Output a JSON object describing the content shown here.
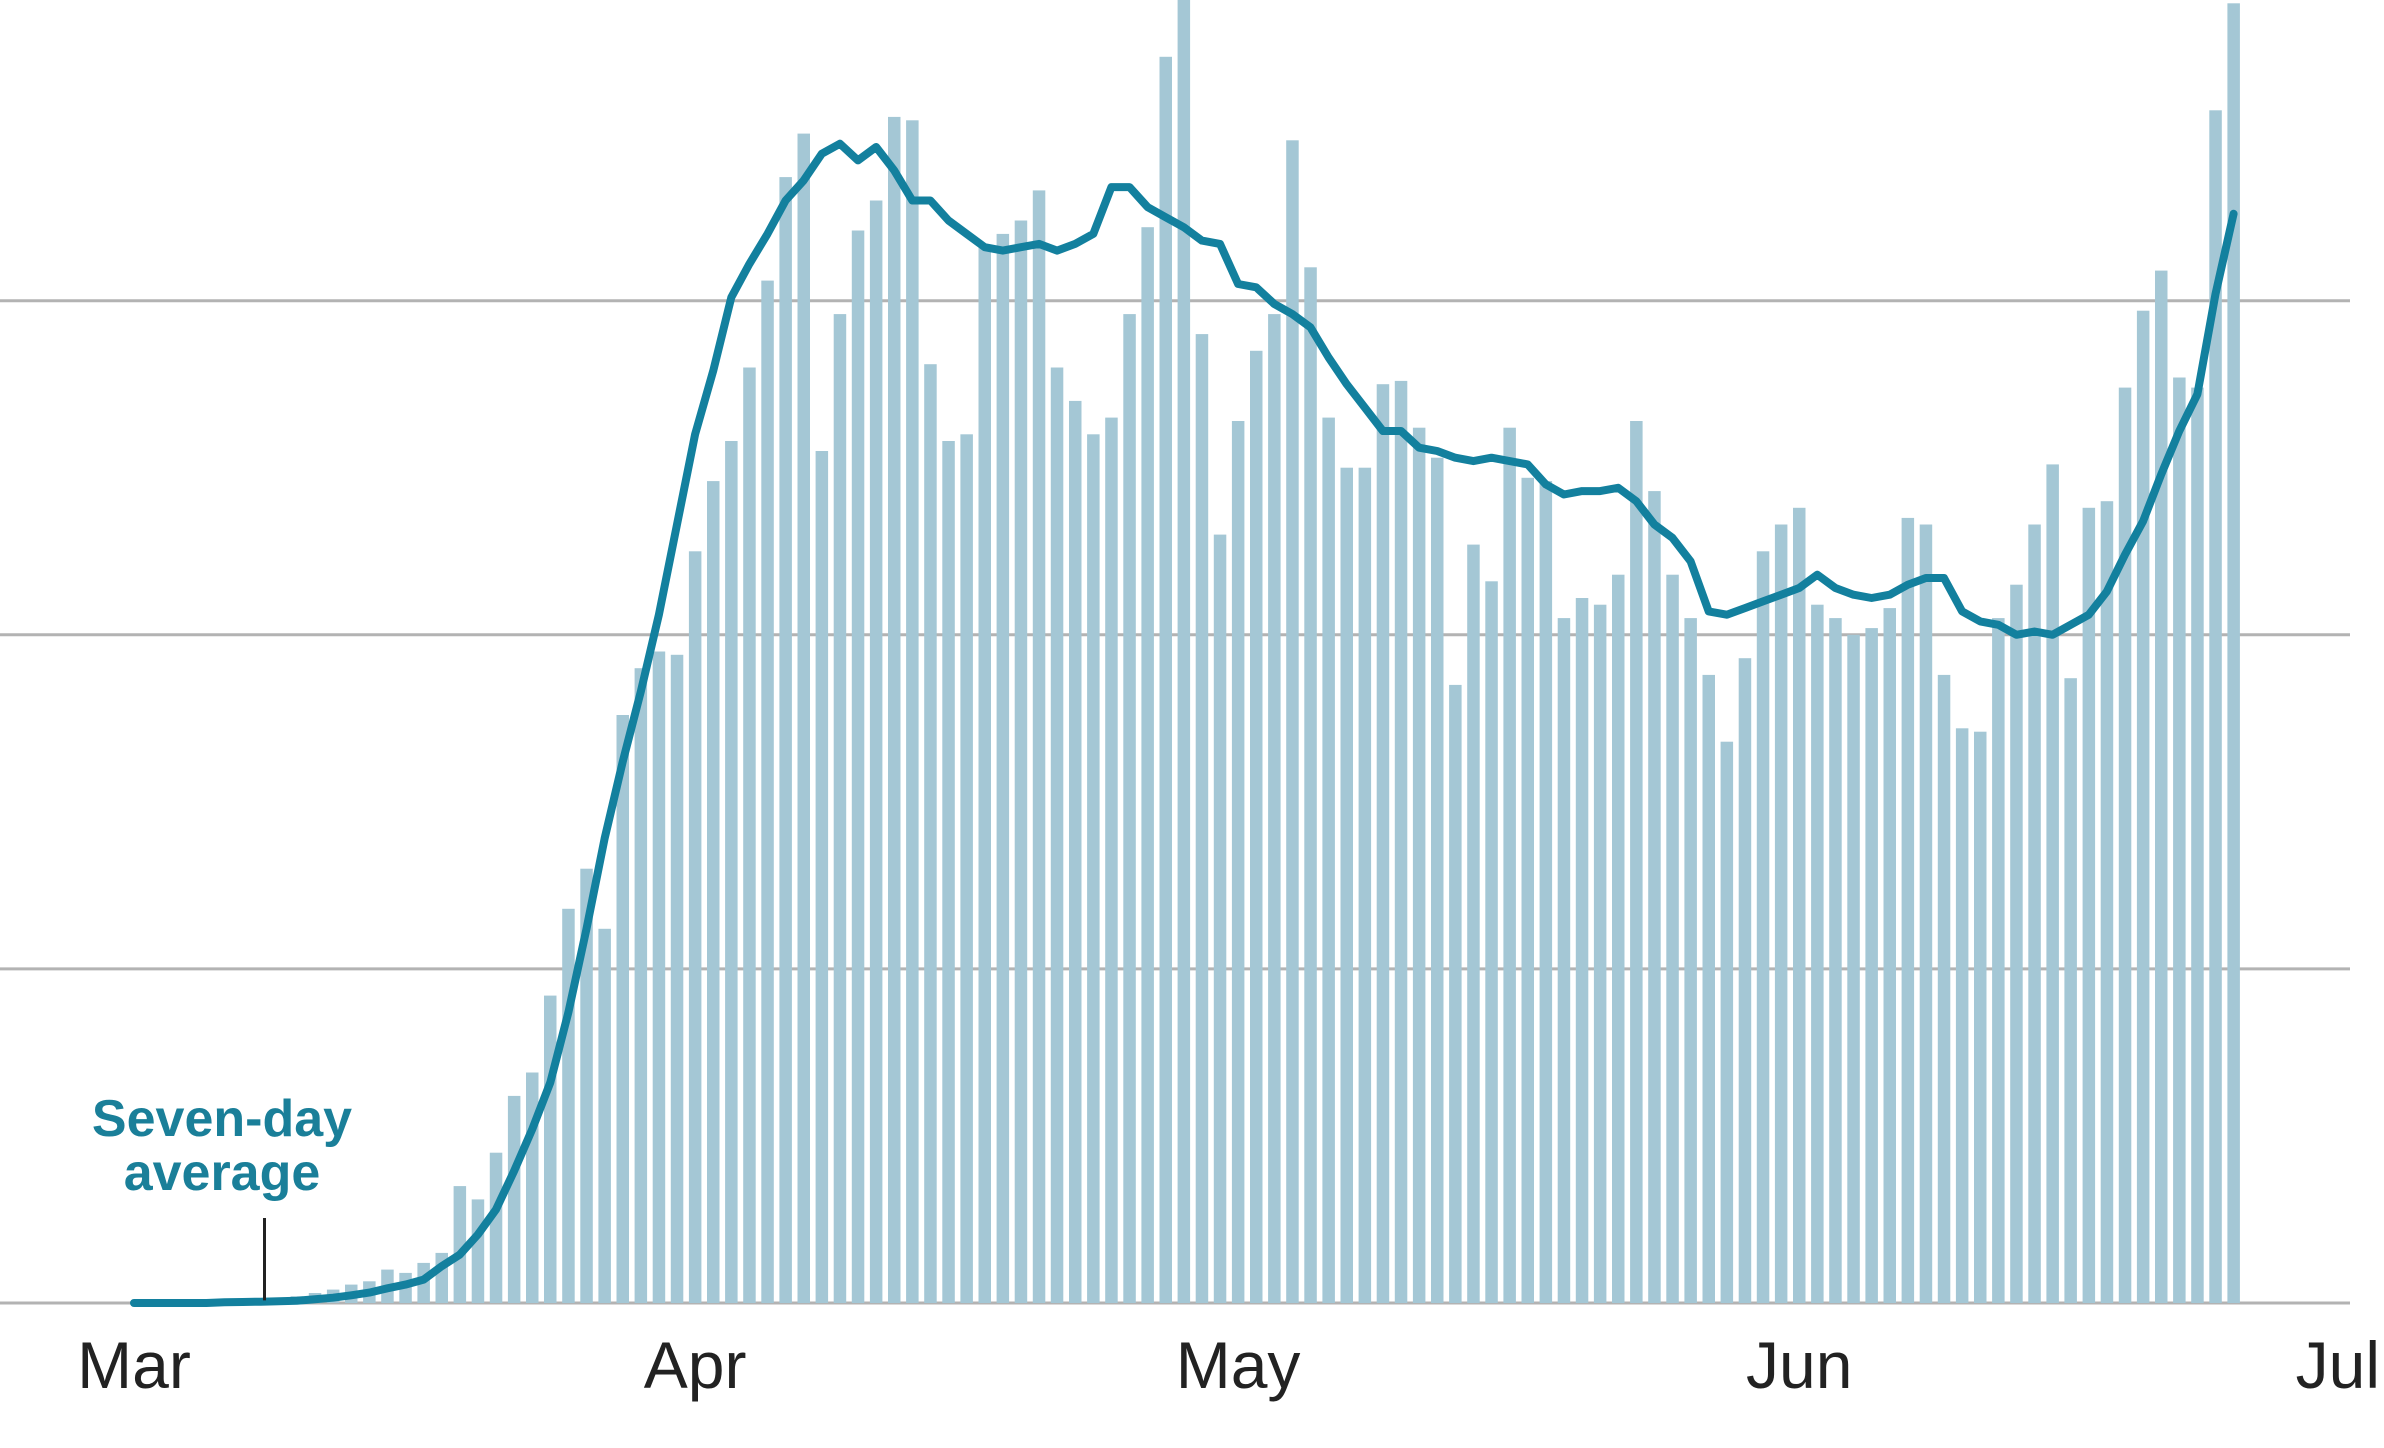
{
  "chart_data": {
    "type": "bar",
    "title": "",
    "xlabel": "",
    "ylabel": "",
    "x_start": "Mar 1",
    "x_ticks": [
      "Mar",
      "Apr",
      "May",
      "Jun",
      "Jul"
    ],
    "ylim": [
      0,
      3900
    ],
    "y_gridlines": [
      0,
      1000,
      2000,
      3000
    ],
    "grid": "horizontal",
    "legend": "none",
    "colors": {
      "bars": "#a4c7d5",
      "average_line": "#13809e",
      "gridline": "#b3b3b3",
      "annotation": "#1a7f99"
    },
    "series": [
      {
        "kind": "bar",
        "values": [
          0,
          0,
          0,
          0,
          0,
          0,
          0,
          0,
          10,
          20,
          30,
          40,
          55,
          65,
          100,
          90,
          120,
          150,
          350,
          310,
          450,
          620,
          690,
          920,
          1180,
          1300,
          1120,
          1760,
          1900,
          1950,
          1940,
          2250,
          2460,
          2580,
          2800,
          3060,
          3370,
          3500,
          2550,
          2960,
          3210,
          3300,
          3550,
          3540,
          2810,
          2580,
          2600,
          3160,
          3200,
          3240,
          3330,
          2800,
          2700,
          2600,
          2650,
          2960,
          3220,
          3730,
          3900,
          2900,
          2300,
          2640,
          2850,
          2960,
          3480,
          3100,
          2650,
          2500,
          2500,
          2750,
          2760,
          2620,
          2530,
          1850,
          2270,
          2160,
          2620,
          2470,
          2460,
          2050,
          2110,
          2090,
          2180,
          2640,
          2430,
          2180,
          2050,
          1880,
          1680,
          1930,
          2250,
          2330,
          2380,
          2090,
          2050,
          2000,
          2020,
          2080,
          2350,
          2330,
          1880,
          1720,
          1710,
          2050,
          2150,
          2330,
          2510,
          1870,
          2380,
          2400,
          2740,
          2970,
          3090,
          2770,
          2740,
          3570,
          3890
        ]
      },
      {
        "kind": "line",
        "label": "Seven-day average",
        "values": [
          0,
          0,
          0,
          0,
          0,
          2,
          3,
          4,
          5,
          7,
          11,
          16,
          23,
          31,
          44,
          55,
          70,
          110,
          145,
          205,
          280,
          395,
          520,
          660,
          870,
          1120,
          1390,
          1620,
          1830,
          2060,
          2330,
          2600,
          2790,
          3010,
          3110,
          3200,
          3300,
          3360,
          3440,
          3470,
          3420,
          3460,
          3390,
          3300,
          3300,
          3240,
          3200,
          3160,
          3150,
          3160,
          3170,
          3150,
          3170,
          3200,
          3340,
          3340,
          3280,
          3250,
          3220,
          3180,
          3170,
          3050,
          3040,
          2990,
          2960,
          2920,
          2830,
          2750,
          2680,
          2610,
          2610,
          2560,
          2550,
          2530,
          2520,
          2530,
          2520,
          2510,
          2450,
          2420,
          2430,
          2430,
          2440,
          2400,
          2330,
          2290,
          2220,
          2070,
          2060,
          2080,
          2100,
          2120,
          2140,
          2180,
          2140,
          2120,
          2110,
          2120,
          2150,
          2170,
          2170,
          2070,
          2040,
          2030,
          2000,
          2010,
          2000,
          2030,
          2060,
          2130,
          2240,
          2340,
          2480,
          2610,
          2720,
          3020,
          3260
        ]
      }
    ],
    "annotations": [
      {
        "text_lines": [
          "Seven-day",
          "average"
        ],
        "target_series": "line",
        "target_index": 5
      }
    ]
  }
}
